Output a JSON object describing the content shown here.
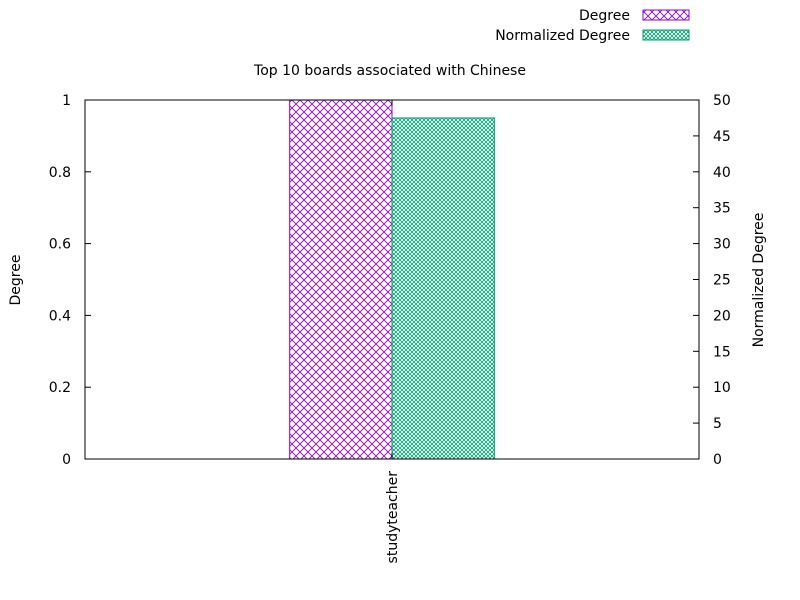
{
  "chart_data": {
    "type": "bar",
    "title": "Top 10 boards associated with Chinese",
    "categories": [
      "studyteacher"
    ],
    "ylabel": "Degree",
    "y2label": "Normalized Degree",
    "ylim": [
      0,
      1
    ],
    "y2lim": [
      0,
      50
    ],
    "yticks": [
      "0",
      "0.2",
      "0.4",
      "0.6",
      "0.8",
      "1"
    ],
    "y2ticks": [
      "0",
      "5",
      "10",
      "15",
      "20",
      "25",
      "30",
      "35",
      "40",
      "45",
      "50"
    ],
    "grid": false,
    "legend_position": "top-right",
    "series": [
      {
        "name": "Degree",
        "axis": "left",
        "values": [
          1
        ],
        "color": "#9400d3",
        "pattern": "crosshatch"
      },
      {
        "name": "Normalized Degree",
        "axis": "right",
        "values": [
          47.5
        ],
        "color": "#009e73",
        "pattern": "fine-crosshatch"
      }
    ]
  }
}
